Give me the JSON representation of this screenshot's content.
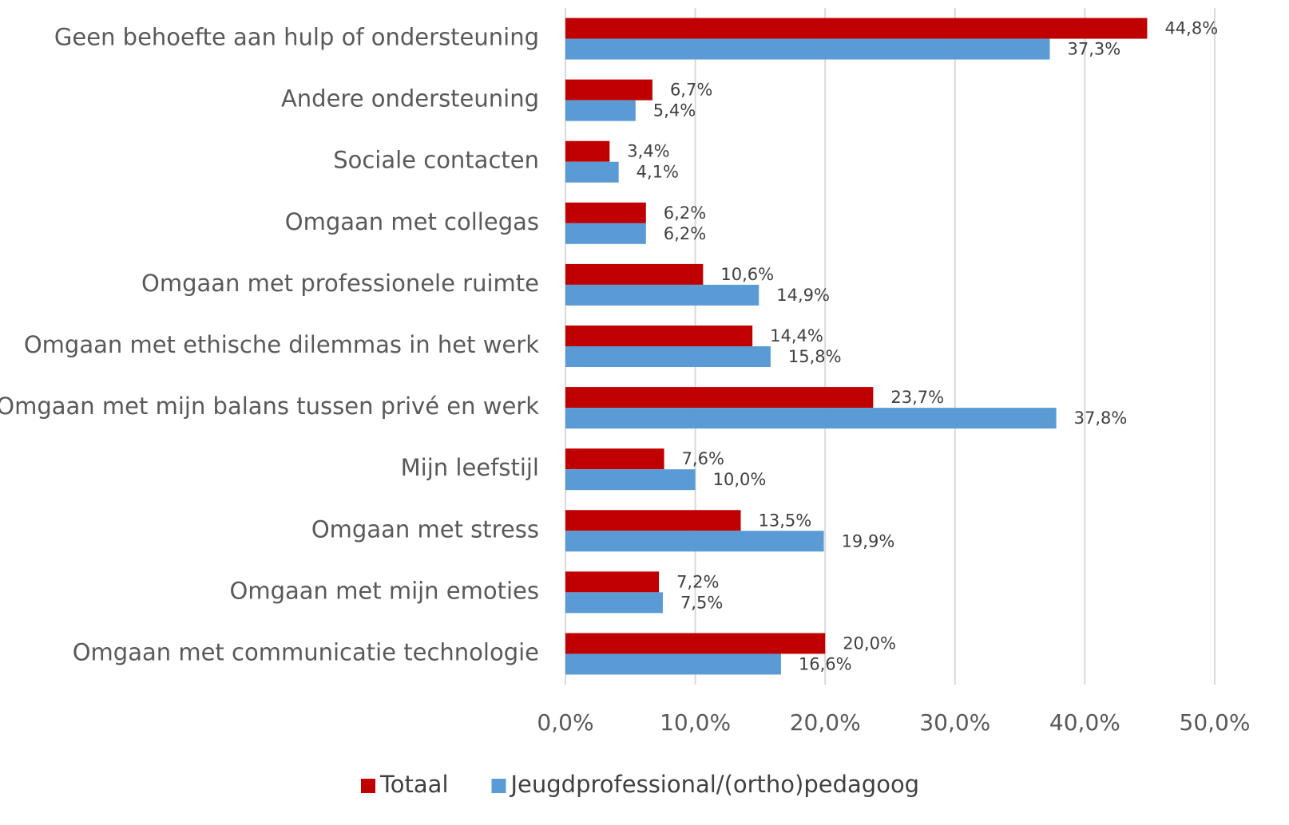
{
  "chart_data": {
    "type": "bar",
    "orientation": "horizontal",
    "categories": [
      "Geen behoefte aan hulp of ondersteuning",
      "Andere ondersteuning",
      "Sociale contacten",
      "Omgaan met collegas",
      "Omgaan met professionele ruimte",
      "Omgaan met ethische dilemmas in het werk",
      "Omgaan met mijn balans tussen privé en werk",
      "Mijn leefstijl",
      "Omgaan met stress",
      "Omgaan met mijn emoties",
      "Omgaan met communicatie technologie"
    ],
    "series": [
      {
        "name": "Totaal",
        "color": "#c00000",
        "values": [
          44.8,
          6.7,
          3.4,
          6.2,
          10.6,
          14.4,
          23.7,
          7.6,
          13.5,
          7.2,
          20.0
        ],
        "value_labels": [
          "44,8%",
          "6,7%",
          "3,4%",
          "6,2%",
          "10,6%",
          "14,4%",
          "23,7%",
          "7,6%",
          "13,5%",
          "7,2%",
          "20,0%"
        ]
      },
      {
        "name": "Jeugdprofessional/(ortho)pedagoog",
        "color": "#5b9bd5",
        "values": [
          37.3,
          5.4,
          4.1,
          6.2,
          14.9,
          15.8,
          37.8,
          10.0,
          19.9,
          7.5,
          16.6
        ],
        "value_labels": [
          "37,3%",
          "5,4%",
          "4,1%",
          "6,2%",
          "14,9%",
          "15,8%",
          "37,8%",
          "10,0%",
          "19,9%",
          "7,5%",
          "16,6%"
        ]
      }
    ],
    "xlim": [
      0,
      50
    ],
    "xticks": [
      {
        "value": 0,
        "label": "0,0%"
      },
      {
        "value": 10,
        "label": "10,0%"
      },
      {
        "value": 20,
        "label": "20,0%"
      },
      {
        "value": 30,
        "label": "30,0%"
      },
      {
        "value": 40,
        "label": "40,0%"
      },
      {
        "value": 50,
        "label": "50,0%"
      }
    ],
    "grid": true,
    "legend": "bottom"
  }
}
